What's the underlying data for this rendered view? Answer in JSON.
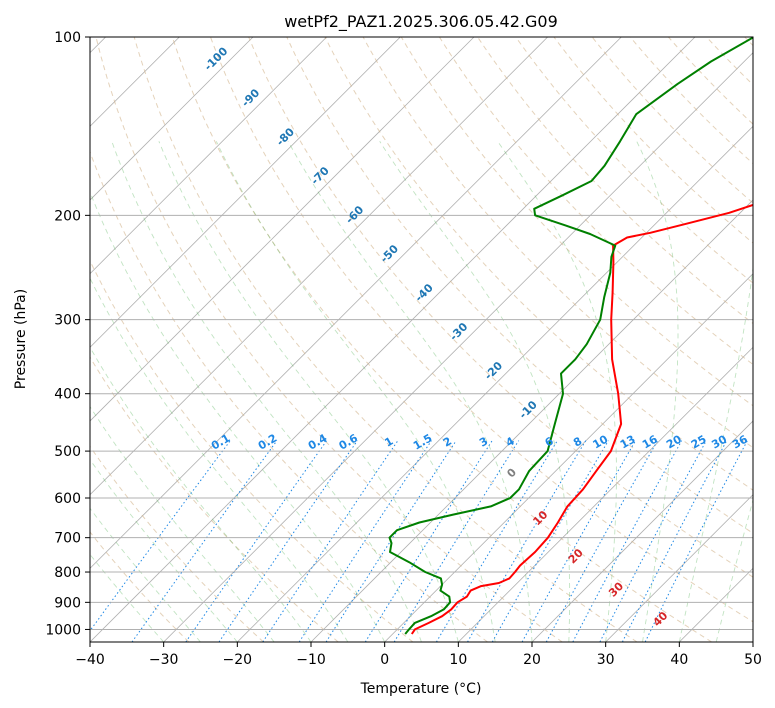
{
  "chart_data": {
    "type": "line",
    "title": "wetPf2_PAZ1.2025.306.05.42.G09",
    "xlabel": "Temperature (°C)",
    "ylabel": "Pressure (hPa)",
    "xlim": [
      -40,
      50
    ],
    "ylim": [
      1050,
      100
    ],
    "x_ticks": [
      -40,
      -30,
      -20,
      -10,
      0,
      10,
      20,
      30,
      40,
      50
    ],
    "y_ticks": [
      100,
      200,
      300,
      400,
      500,
      600,
      700,
      800,
      900,
      1000
    ],
    "series": [
      {
        "name": "Temperature",
        "color": "#ff0000",
        "points": [
          [
            1018,
            2.6
          ],
          [
            1000,
            2.4
          ],
          [
            975,
            3.4
          ],
          [
            950,
            4.3
          ],
          [
            925,
            4.6
          ],
          [
            900,
            4.5
          ],
          [
            880,
            5.0
          ],
          [
            860,
            4.7
          ],
          [
            845,
            5.5
          ],
          [
            835,
            7.5
          ],
          [
            820,
            8.3
          ],
          [
            800,
            8.2
          ],
          [
            780,
            8.0
          ],
          [
            740,
            8.2
          ],
          [
            700,
            8.0
          ],
          [
            660,
            7.3
          ],
          [
            620,
            6.4
          ],
          [
            580,
            6.2
          ],
          [
            540,
            5.5
          ],
          [
            500,
            4.8
          ],
          [
            450,
            2.5
          ],
          [
            400,
            -2.0
          ],
          [
            350,
            -7.5
          ],
          [
            300,
            -13.0
          ],
          [
            270,
            -16.5
          ],
          [
            240,
            -20.5
          ],
          [
            225,
            -22.8
          ],
          [
            218,
            -22.0
          ],
          [
            214,
            -19.5
          ],
          [
            207,
            -16.0
          ],
          [
            198,
            -11.5
          ],
          [
            188,
            -7.8
          ],
          [
            176,
            -5.5
          ],
          [
            160,
            -3.0
          ],
          [
            145,
            0.0
          ],
          [
            130,
            3.2
          ],
          [
            118,
            6.0
          ],
          [
            108,
            8.5
          ],
          [
            100,
            10.5
          ]
        ]
      },
      {
        "name": "Dewpoint",
        "color": "#008000",
        "points": [
          [
            1018,
            1.7
          ],
          [
            1000,
            1.6
          ],
          [
            975,
            1.5
          ],
          [
            950,
            2.8
          ],
          [
            925,
            3.6
          ],
          [
            900,
            3.5
          ],
          [
            880,
            2.6
          ],
          [
            860,
            0.6
          ],
          [
            840,
            0.0
          ],
          [
            820,
            -1.0
          ],
          [
            800,
            -4.0
          ],
          [
            770,
            -7.5
          ],
          [
            740,
            -11.5
          ],
          [
            715,
            -12.5
          ],
          [
            700,
            -13.5
          ],
          [
            680,
            -13.5
          ],
          [
            660,
            -11.5
          ],
          [
            640,
            -8.0
          ],
          [
            620,
            -4.0
          ],
          [
            600,
            -2.5
          ],
          [
            580,
            -2.5
          ],
          [
            540,
            -3.6
          ],
          [
            500,
            -3.8
          ],
          [
            450,
            -6.5
          ],
          [
            400,
            -9.5
          ],
          [
            370,
            -12.5
          ],
          [
            350,
            -12.5
          ],
          [
            330,
            -13.0
          ],
          [
            300,
            -14.5
          ],
          [
            275,
            -17.0
          ],
          [
            250,
            -19.5
          ],
          [
            235,
            -21.5
          ],
          [
            225,
            -22.5
          ],
          [
            215,
            -27.5
          ],
          [
            208,
            -32.0
          ],
          [
            200,
            -37.5
          ],
          [
            195,
            -38.5
          ],
          [
            185,
            -36.5
          ],
          [
            175,
            -34.5
          ],
          [
            165,
            -34.8
          ],
          [
            150,
            -36.0
          ],
          [
            135,
            -37.5
          ],
          [
            120,
            -36.0
          ],
          [
            110,
            -34.5
          ],
          [
            100,
            -32.0
          ]
        ]
      }
    ],
    "dry_adiabat_labels": [
      "-100",
      "-90",
      "-80",
      "-70",
      "-60",
      "-50",
      "-40",
      "-30",
      "-20",
      "-10",
      "0",
      "10",
      "20",
      "30",
      "40"
    ],
    "mixing_ratio_labels": [
      "0.1",
      "0.2",
      "0.4",
      "0.6",
      "1",
      "1.5",
      "2",
      "3",
      "4",
      "6",
      "8",
      "10",
      "13",
      "16",
      "20",
      "25",
      "30",
      "36"
    ],
    "grid": true
  }
}
